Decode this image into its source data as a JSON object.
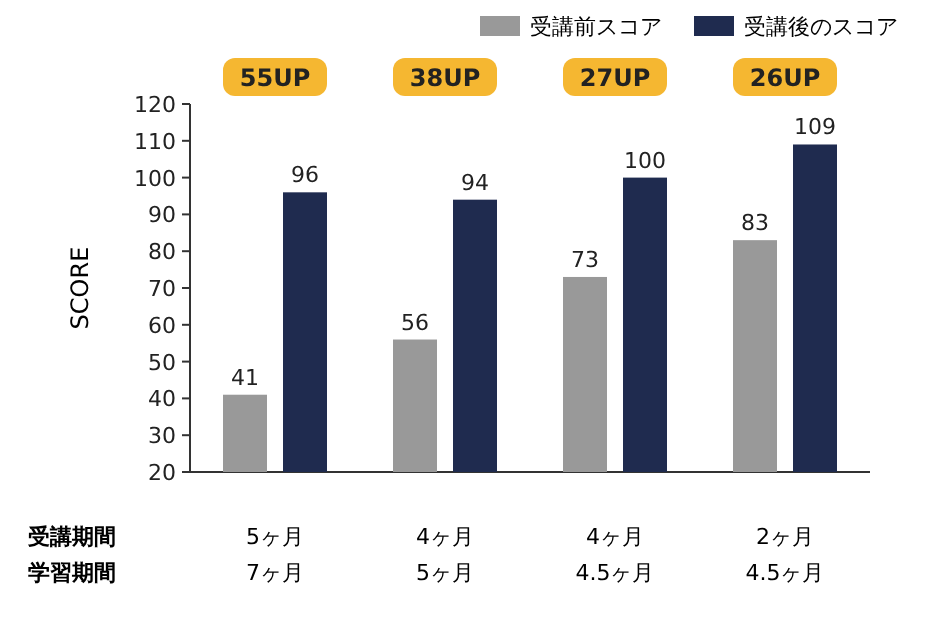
{
  "chart_data": {
    "type": "bar",
    "ylabel": "SCORE",
    "categories": [
      "5ヶ月\n7ヶ月",
      "4ヶ月\n5ヶ月",
      "4ヶ月\n4.5ヶ月",
      "2ヶ月\n4.5ヶ月"
    ],
    "series": [
      {
        "name": "受講前スコア",
        "color": "#999999",
        "values": [
          41,
          56,
          73,
          83
        ]
      },
      {
        "name": "受講後のスコア",
        "color": "#1f2b4f",
        "values": [
          96,
          94,
          100,
          109
        ]
      }
    ],
    "ylim": [
      20,
      120
    ],
    "yticks": [
      20,
      30,
      40,
      50,
      60,
      70,
      80,
      90,
      100,
      110,
      120
    ],
    "data_labels": true,
    "legend": "top right",
    "annotations": [
      "55UP",
      "38UP",
      "27UP",
      "26UP",
      "受講期間",
      "学習期間"
    ]
  }
}
